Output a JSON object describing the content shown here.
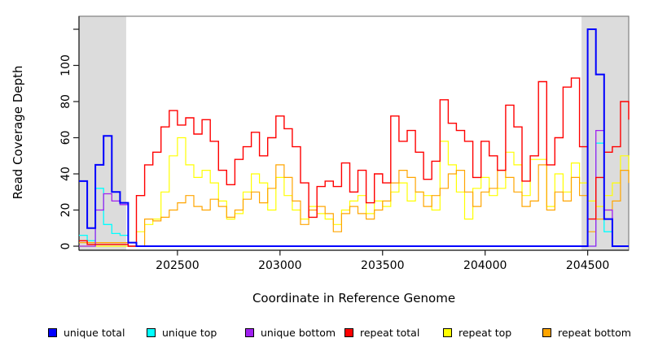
{
  "chart_data": {
    "type": "line",
    "subtype": "step",
    "title": "",
    "xlabel": "Coordinate in Reference Genome",
    "ylabel": "Read Coverage Depth",
    "xlim": [
      202020,
      204700
    ],
    "ylim": [
      0,
      128
    ],
    "grid": false,
    "legend_position": "bottom",
    "background": "#FFFFFF",
    "box_color": "#808080",
    "axis_color": "#1a1a1a",
    "highlight_color": "#DCDCDC",
    "highlight_regions": [
      {
        "from": 202020,
        "to": 202250
      },
      {
        "from": 204470,
        "to": 204700
      }
    ],
    "x_ticks": [
      {
        "value": 202500,
        "label": "202500"
      },
      {
        "value": 203000,
        "label": "203000"
      },
      {
        "value": 203500,
        "label": "203500"
      },
      {
        "value": 204000,
        "label": "204000"
      },
      {
        "value": 204500,
        "label": "204500"
      }
    ],
    "y_ticks": [
      {
        "value": 0,
        "label": "0"
      },
      {
        "value": 20,
        "label": "20"
      },
      {
        "value": 40,
        "label": "40"
      },
      {
        "value": 60,
        "label": "60"
      },
      {
        "value": 80,
        "label": "80"
      },
      {
        "value": 100,
        "label": "100"
      },
      {
        "value": 120,
        "label": ""
      }
    ],
    "x": [
      202020,
      202060,
      202100,
      202140,
      202180,
      202220,
      202260,
      202300,
      202340,
      202380,
      202420,
      202460,
      202500,
      202540,
      202580,
      202620,
      202660,
      202700,
      202740,
      202780,
      202820,
      202860,
      202900,
      202940,
      202980,
      203020,
      203060,
      203100,
      203140,
      203180,
      203220,
      203260,
      203300,
      203340,
      203380,
      203420,
      203460,
      203500,
      203540,
      203580,
      203620,
      203660,
      203700,
      203740,
      203780,
      203820,
      203860,
      203900,
      203940,
      203980,
      204020,
      204060,
      204100,
      204140,
      204180,
      204220,
      204260,
      204300,
      204340,
      204380,
      204420,
      204460,
      204500,
      204540,
      204580,
      204620,
      204660,
      204700
    ],
    "draw_order": [
      "repeat top",
      "repeat bottom",
      "unique top",
      "unique bottom",
      "repeat total",
      "unique total"
    ],
    "series": [
      {
        "name": "unique total",
        "color": "#0000FF",
        "line_width": 2,
        "values": [
          36,
          10,
          45,
          61,
          30,
          24,
          2,
          0,
          0,
          0,
          0,
          0,
          0,
          0,
          0,
          0,
          0,
          0,
          0,
          0,
          0,
          0,
          0,
          0,
          0,
          0,
          0,
          0,
          0,
          0,
          0,
          0,
          0,
          0,
          0,
          0,
          0,
          0,
          0,
          0,
          0,
          0,
          0,
          0,
          0,
          0,
          0,
          0,
          0,
          0,
          0,
          0,
          0,
          0,
          0,
          0,
          0,
          0,
          0,
          0,
          0,
          0,
          120,
          95,
          15,
          0,
          0,
          0
        ]
      },
      {
        "name": "unique top",
        "color": "#00FFFF",
        "line_width": 1.3,
        "values": [
          6,
          3,
          32,
          12,
          7,
          6,
          0,
          0,
          0,
          0,
          0,
          0,
          0,
          0,
          0,
          0,
          0,
          0,
          0,
          0,
          0,
          0,
          0,
          0,
          0,
          0,
          0,
          0,
          0,
          0,
          0,
          0,
          0,
          0,
          0,
          0,
          0,
          0,
          0,
          0,
          0,
          0,
          0,
          0,
          0,
          0,
          0,
          0,
          0,
          0,
          0,
          0,
          0,
          0,
          0,
          0,
          0,
          0,
          0,
          0,
          0,
          0,
          0,
          57,
          8,
          0,
          0,
          0
        ]
      },
      {
        "name": "unique bottom",
        "color": "#A020F0",
        "line_width": 1.3,
        "values": [
          0,
          0,
          20,
          29,
          25,
          23,
          0,
          0,
          0,
          0,
          0,
          0,
          0,
          0,
          0,
          0,
          0,
          0,
          0,
          0,
          0,
          0,
          0,
          0,
          0,
          0,
          0,
          0,
          0,
          0,
          0,
          0,
          0,
          0,
          0,
          0,
          0,
          0,
          0,
          0,
          0,
          0,
          0,
          0,
          0,
          0,
          0,
          0,
          0,
          0,
          0,
          0,
          0,
          0,
          0,
          0,
          0,
          0,
          0,
          0,
          0,
          0,
          0,
          64,
          20,
          0,
          0,
          0
        ]
      },
      {
        "name": "repeat total",
        "color": "#FF0000",
        "line_width": 1.4,
        "values": [
          3,
          1,
          1,
          1,
          1,
          1,
          0,
          28,
          45,
          52,
          66,
          75,
          67,
          71,
          62,
          70,
          58,
          42,
          34,
          48,
          55,
          63,
          50,
          60,
          72,
          65,
          55,
          35,
          16,
          33,
          36,
          33,
          46,
          30,
          42,
          24,
          40,
          35,
          72,
          58,
          64,
          52,
          37,
          47,
          81,
          68,
          64,
          58,
          38,
          58,
          50,
          42,
          78,
          66,
          36,
          50,
          91,
          45,
          60,
          88,
          93,
          55,
          15,
          38,
          52,
          55,
          80,
          70
        ]
      },
      {
        "name": "repeat top",
        "color": "#FFFF00",
        "line_width": 1.2,
        "values": [
          0,
          0,
          0,
          0,
          0,
          0,
          0,
          8,
          12,
          15,
          30,
          50,
          60,
          45,
          38,
          42,
          35,
          25,
          15,
          18,
          30,
          40,
          35,
          20,
          38,
          28,
          20,
          15,
          22,
          18,
          15,
          12,
          20,
          25,
          28,
          18,
          25,
          22,
          30,
          35,
          25,
          30,
          28,
          20,
          58,
          45,
          30,
          15,
          32,
          38,
          28,
          32,
          52,
          45,
          28,
          48,
          48,
          22,
          40,
          30,
          46,
          35,
          25,
          22,
          28,
          35,
          50,
          40
        ]
      },
      {
        "name": "repeat bottom",
        "color": "#FFA500",
        "line_width": 1.2,
        "values": [
          2,
          2,
          2,
          2,
          2,
          2,
          0,
          0,
          15,
          14,
          16,
          20,
          24,
          28,
          22,
          20,
          26,
          22,
          16,
          20,
          26,
          30,
          24,
          32,
          45,
          38,
          25,
          12,
          20,
          22,
          18,
          8,
          18,
          22,
          18,
          15,
          20,
          25,
          35,
          42,
          38,
          30,
          22,
          28,
          32,
          40,
          42,
          30,
          22,
          30,
          32,
          42,
          38,
          30,
          22,
          25,
          45,
          20,
          30,
          25,
          38,
          28,
          8,
          15,
          20,
          25,
          42,
          35
        ]
      }
    ]
  }
}
